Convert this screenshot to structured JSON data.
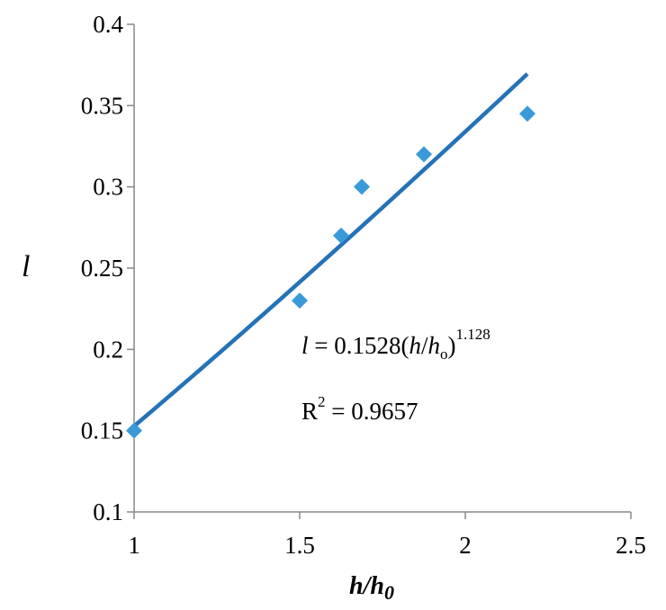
{
  "chart_data": {
    "type": "scatter",
    "xlabel": "h/h",
    "xlabel_sub": "0",
    "ylabel": "l",
    "xlim": [
      1,
      2.5
    ],
    "ylim": [
      0.1,
      0.4
    ],
    "xticks": [
      1,
      1.5,
      2,
      2.5
    ],
    "xtick_labels": [
      "1",
      "1.5",
      "2",
      "2.5"
    ],
    "yticks": [
      0.1,
      0.15,
      0.2,
      0.25,
      0.3,
      0.35,
      0.4
    ],
    "ytick_labels": [
      "0.1",
      "0.15",
      "0.2",
      "0.25",
      "0.3",
      "0.35",
      "0.4"
    ],
    "grid": false,
    "legend": "none",
    "series": [
      {
        "x": [
          1.0,
          1.5,
          1.625,
          1.6875,
          1.875,
          2.1875
        ],
        "y": [
          0.15,
          0.23,
          0.27,
          0.3,
          0.32,
          0.345
        ],
        "marker": "diamond",
        "color": "#3a9ad9"
      }
    ],
    "trendline": {
      "type": "power",
      "coefficient": 0.1528,
      "exponent": 1.128,
      "x_range": [
        1.0,
        2.1875
      ],
      "color": "#2472b8"
    },
    "annotations": {
      "equation": {
        "var": "l",
        "eq_text": " = 0.1528(",
        "h": "h",
        "slash": "/",
        "h2": "h",
        "sub": "o",
        "close": ")",
        "exponent": "1.128"
      },
      "r_squared": {
        "r": "R",
        "sup": "2",
        "value": " = 0.9657"
      }
    }
  }
}
